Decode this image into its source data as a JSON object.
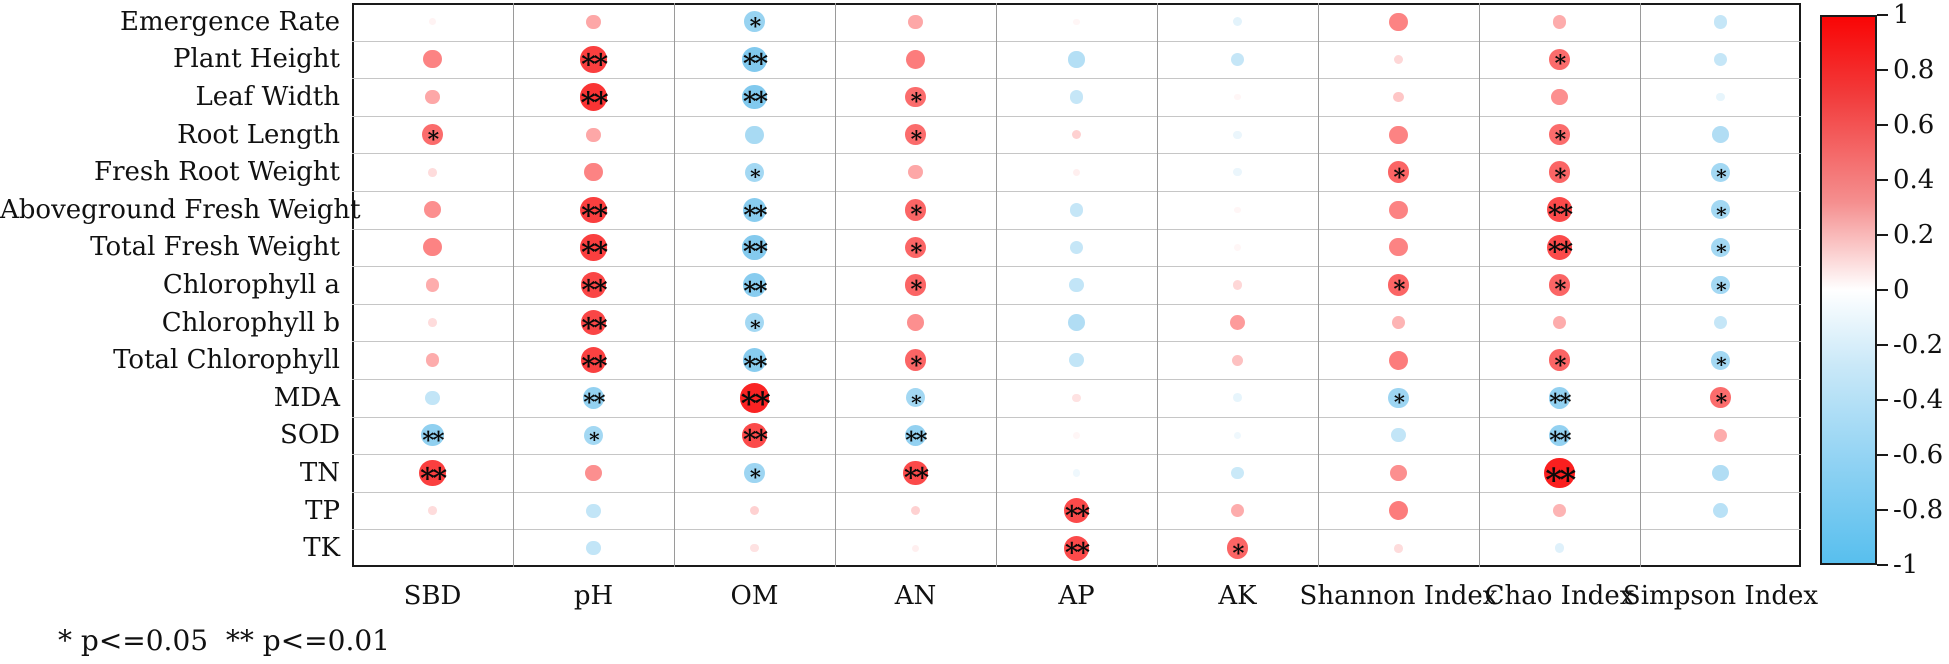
{
  "chart_data": {
    "type": "heatmap",
    "style": "bubble-correlogram",
    "title": "",
    "rows": [
      "Emergence Rate",
      "Plant Height",
      "Leaf Width",
      "Root Length",
      "Fresh Root Weight",
      "Aboveground Fresh Weight",
      "Total Fresh Weight",
      "Chlorophyll a",
      "Chlorophyll b",
      "Total Chlorophyll",
      "MDA",
      "SOD",
      "TN",
      "TP",
      "TK"
    ],
    "columns": [
      "SBD",
      "pH",
      "OM",
      "AN",
      "AP",
      "AK",
      "Shannon Index",
      "Chao Index",
      "Simpson Index"
    ],
    "values": [
      [
        0.03,
        0.3,
        -0.55,
        0.3,
        0.02,
        -0.12,
        0.45,
        0.28,
        -0.28
      ],
      [
        0.45,
        0.75,
        -0.7,
        0.48,
        -0.38,
        -0.28,
        0.12,
        0.55,
        -0.28
      ],
      [
        0.3,
        0.8,
        -0.7,
        0.55,
        -0.28,
        0.02,
        0.18,
        0.4,
        -0.1
      ],
      [
        0.55,
        0.3,
        -0.45,
        0.55,
        0.14,
        -0.08,
        0.45,
        0.55,
        -0.4
      ],
      [
        0.1,
        0.45,
        -0.48,
        0.3,
        0.04,
        -0.08,
        0.58,
        0.58,
        -0.48
      ],
      [
        0.4,
        0.75,
        -0.65,
        0.58,
        -0.28,
        0.02,
        0.45,
        0.7,
        -0.48
      ],
      [
        0.45,
        0.75,
        -0.68,
        0.58,
        -0.28,
        0.02,
        0.45,
        0.7,
        -0.48
      ],
      [
        0.28,
        0.72,
        -0.65,
        0.58,
        -0.3,
        0.12,
        0.58,
        0.58,
        -0.48
      ],
      [
        0.1,
        0.72,
        -0.48,
        0.4,
        -0.4,
        0.35,
        0.25,
        0.28,
        -0.28
      ],
      [
        0.28,
        0.74,
        -0.65,
        0.58,
        -0.3,
        0.2,
        0.48,
        0.58,
        -0.48
      ],
      [
        -0.3,
        -0.58,
        0.88,
        -0.48,
        0.08,
        -0.1,
        -0.52,
        -0.58,
        0.55
      ],
      [
        -0.6,
        -0.48,
        0.7,
        -0.58,
        0.02,
        -0.06,
        -0.3,
        -0.58,
        0.28
      ],
      [
        0.75,
        0.4,
        -0.52,
        0.7,
        -0.06,
        -0.25,
        0.4,
        0.9,
        -0.4
      ],
      [
        0.1,
        -0.3,
        0.14,
        0.14,
        0.7,
        0.28,
        0.48,
        0.25,
        -0.35
      ],
      [
        0.0,
        -0.3,
        0.08,
        0.04,
        0.7,
        0.58,
        0.1,
        -0.14,
        0.0
      ]
    ],
    "significance": [
      [
        "",
        "",
        "*",
        "",
        "",
        "",
        "",
        "",
        ""
      ],
      [
        "",
        "**",
        "**",
        "",
        "",
        "",
        "",
        "*",
        ""
      ],
      [
        "",
        "**",
        "**",
        "*",
        "",
        "",
        "",
        "",
        ""
      ],
      [
        "*",
        "",
        "",
        "*",
        "",
        "",
        "",
        "*",
        ""
      ],
      [
        "",
        "",
        "*",
        "",
        "",
        "",
        "*",
        "*",
        "*"
      ],
      [
        "",
        "**",
        "**",
        "*",
        "",
        "",
        "",
        "**",
        "*"
      ],
      [
        "",
        "**",
        "**",
        "*",
        "",
        "",
        "",
        "**",
        "*"
      ],
      [
        "",
        "**",
        "**",
        "*",
        "",
        "",
        "*",
        "*",
        "*"
      ],
      [
        "",
        "**",
        "*",
        "",
        "",
        "",
        "",
        "",
        ""
      ],
      [
        "",
        "**",
        "**",
        "*",
        "",
        "",
        "",
        "*",
        "*"
      ],
      [
        "",
        "**",
        "**",
        "*",
        "",
        "",
        "*",
        "**",
        "*"
      ],
      [
        "**",
        "*",
        "**",
        "**",
        "",
        "",
        "",
        "**",
        ""
      ],
      [
        "**",
        "",
        "*",
        "**",
        "",
        "",
        "",
        "**",
        ""
      ],
      [
        "",
        "",
        "",
        "",
        "**",
        "",
        "",
        "",
        ""
      ],
      [
        "",
        "",
        "",
        "",
        "**",
        "*",
        "",
        "",
        ""
      ]
    ],
    "colorbar": {
      "min": -1,
      "max": 1,
      "tick_labels": [
        "1",
        "0.8",
        "0.6",
        "0.4",
        "0.2",
        "0",
        "-0.2",
        "-0.4",
        "-0.6",
        "-0.8",
        "-1"
      ],
      "positive_color": "#f90a0a",
      "negative_color": "#54b6e8",
      "neutral_color": "#ffffff",
      "position": "right"
    },
    "legend": "* p<=0.05  ** p<=0.01",
    "legend_position": "bottom-left",
    "grid": true,
    "xlabel": "",
    "ylabel": ""
  }
}
